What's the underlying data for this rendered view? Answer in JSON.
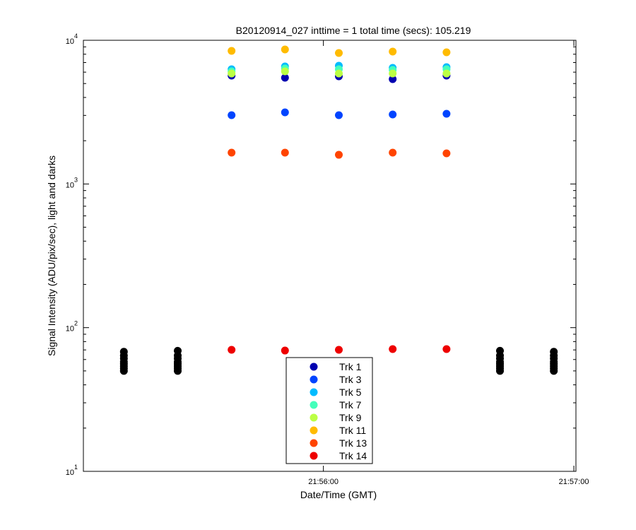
{
  "chart_data": {
    "type": "scatter",
    "title": "B20120914_027 inttime = 1 total time (secs): 105.219",
    "xlabel": "Date/Time (GMT)",
    "ylabel": "Signal Intensity (ADU/pix/sec), light and darks",
    "yscale": "log",
    "xlim": [
      78902.5,
      79020.5
    ],
    "xticks": [
      {
        "value": 78960,
        "label": "21:56:00"
      },
      {
        "value": 79020,
        "label": "21:57:00"
      }
    ],
    "ylim": [
      10,
      10000
    ],
    "yticks": [
      {
        "value": 10,
        "label": "10^1"
      },
      {
        "value": 100,
        "label": "10^2"
      },
      {
        "value": 1000,
        "label": "10^3"
      },
      {
        "value": 10000,
        "label": "10^4"
      }
    ],
    "x": [
      78938.0,
      78950.8,
      78963.7,
      78976.6,
      78989.5
    ],
    "series": [
      {
        "name": "Trk 1",
        "color": "#0000b0",
        "values": [
          5675,
          5486,
          5610,
          5366,
          5675
        ]
      },
      {
        "name": "Trk 3",
        "color": "#0044ff",
        "values": [
          3010,
          3150,
          3010,
          3045,
          3080
        ]
      },
      {
        "name": "Trk 5",
        "color": "#00bbff",
        "values": [
          6283,
          6577,
          6650,
          6430,
          6500
        ]
      },
      {
        "name": "Trk 7",
        "color": "#44ffbb",
        "values": [
          6077,
          6360,
          6283,
          6214,
          6283
        ]
      },
      {
        "name": "Trk 9",
        "color": "#bbff44",
        "values": [
          5873,
          6077,
          5873,
          5873,
          5873
        ]
      },
      {
        "name": "Trk 11",
        "color": "#ffbb00",
        "values": [
          8436,
          8630,
          8156,
          8340,
          8250
        ]
      },
      {
        "name": "Trk 13",
        "color": "#ff4400",
        "values": [
          1652,
          1652,
          1596,
          1652,
          1633
        ]
      },
      {
        "name": "Trk 14",
        "color": "#ee0000",
        "values": [
          70.1,
          69.3,
          70.1,
          70.9,
          70.9
        ]
      }
    ],
    "darks": {
      "color": "#000000",
      "x": [
        78912.2,
        78912.2,
        78912.2,
        78912.2,
        78912.2,
        78912.2,
        78912.2,
        78912.2,
        78925.1,
        78925.1,
        78925.1,
        78925.1,
        78925.1,
        78925.1,
        78925.1,
        78925.1,
        79002.3,
        79002.3,
        79002.3,
        79002.3,
        79002.3,
        79002.3,
        79002.3,
        79002.3,
        79015.2,
        79015.2,
        79015.2,
        79015.2,
        79015.2,
        79015.2,
        79015.2,
        79015.2
      ],
      "values": [
        50,
        52,
        54,
        56,
        58,
        61,
        64,
        68,
        50,
        52,
        54,
        56,
        58,
        61,
        64,
        69,
        50,
        52,
        54,
        56,
        58,
        61,
        64,
        69,
        50,
        52,
        54,
        56,
        58,
        61,
        64,
        68
      ]
    }
  }
}
